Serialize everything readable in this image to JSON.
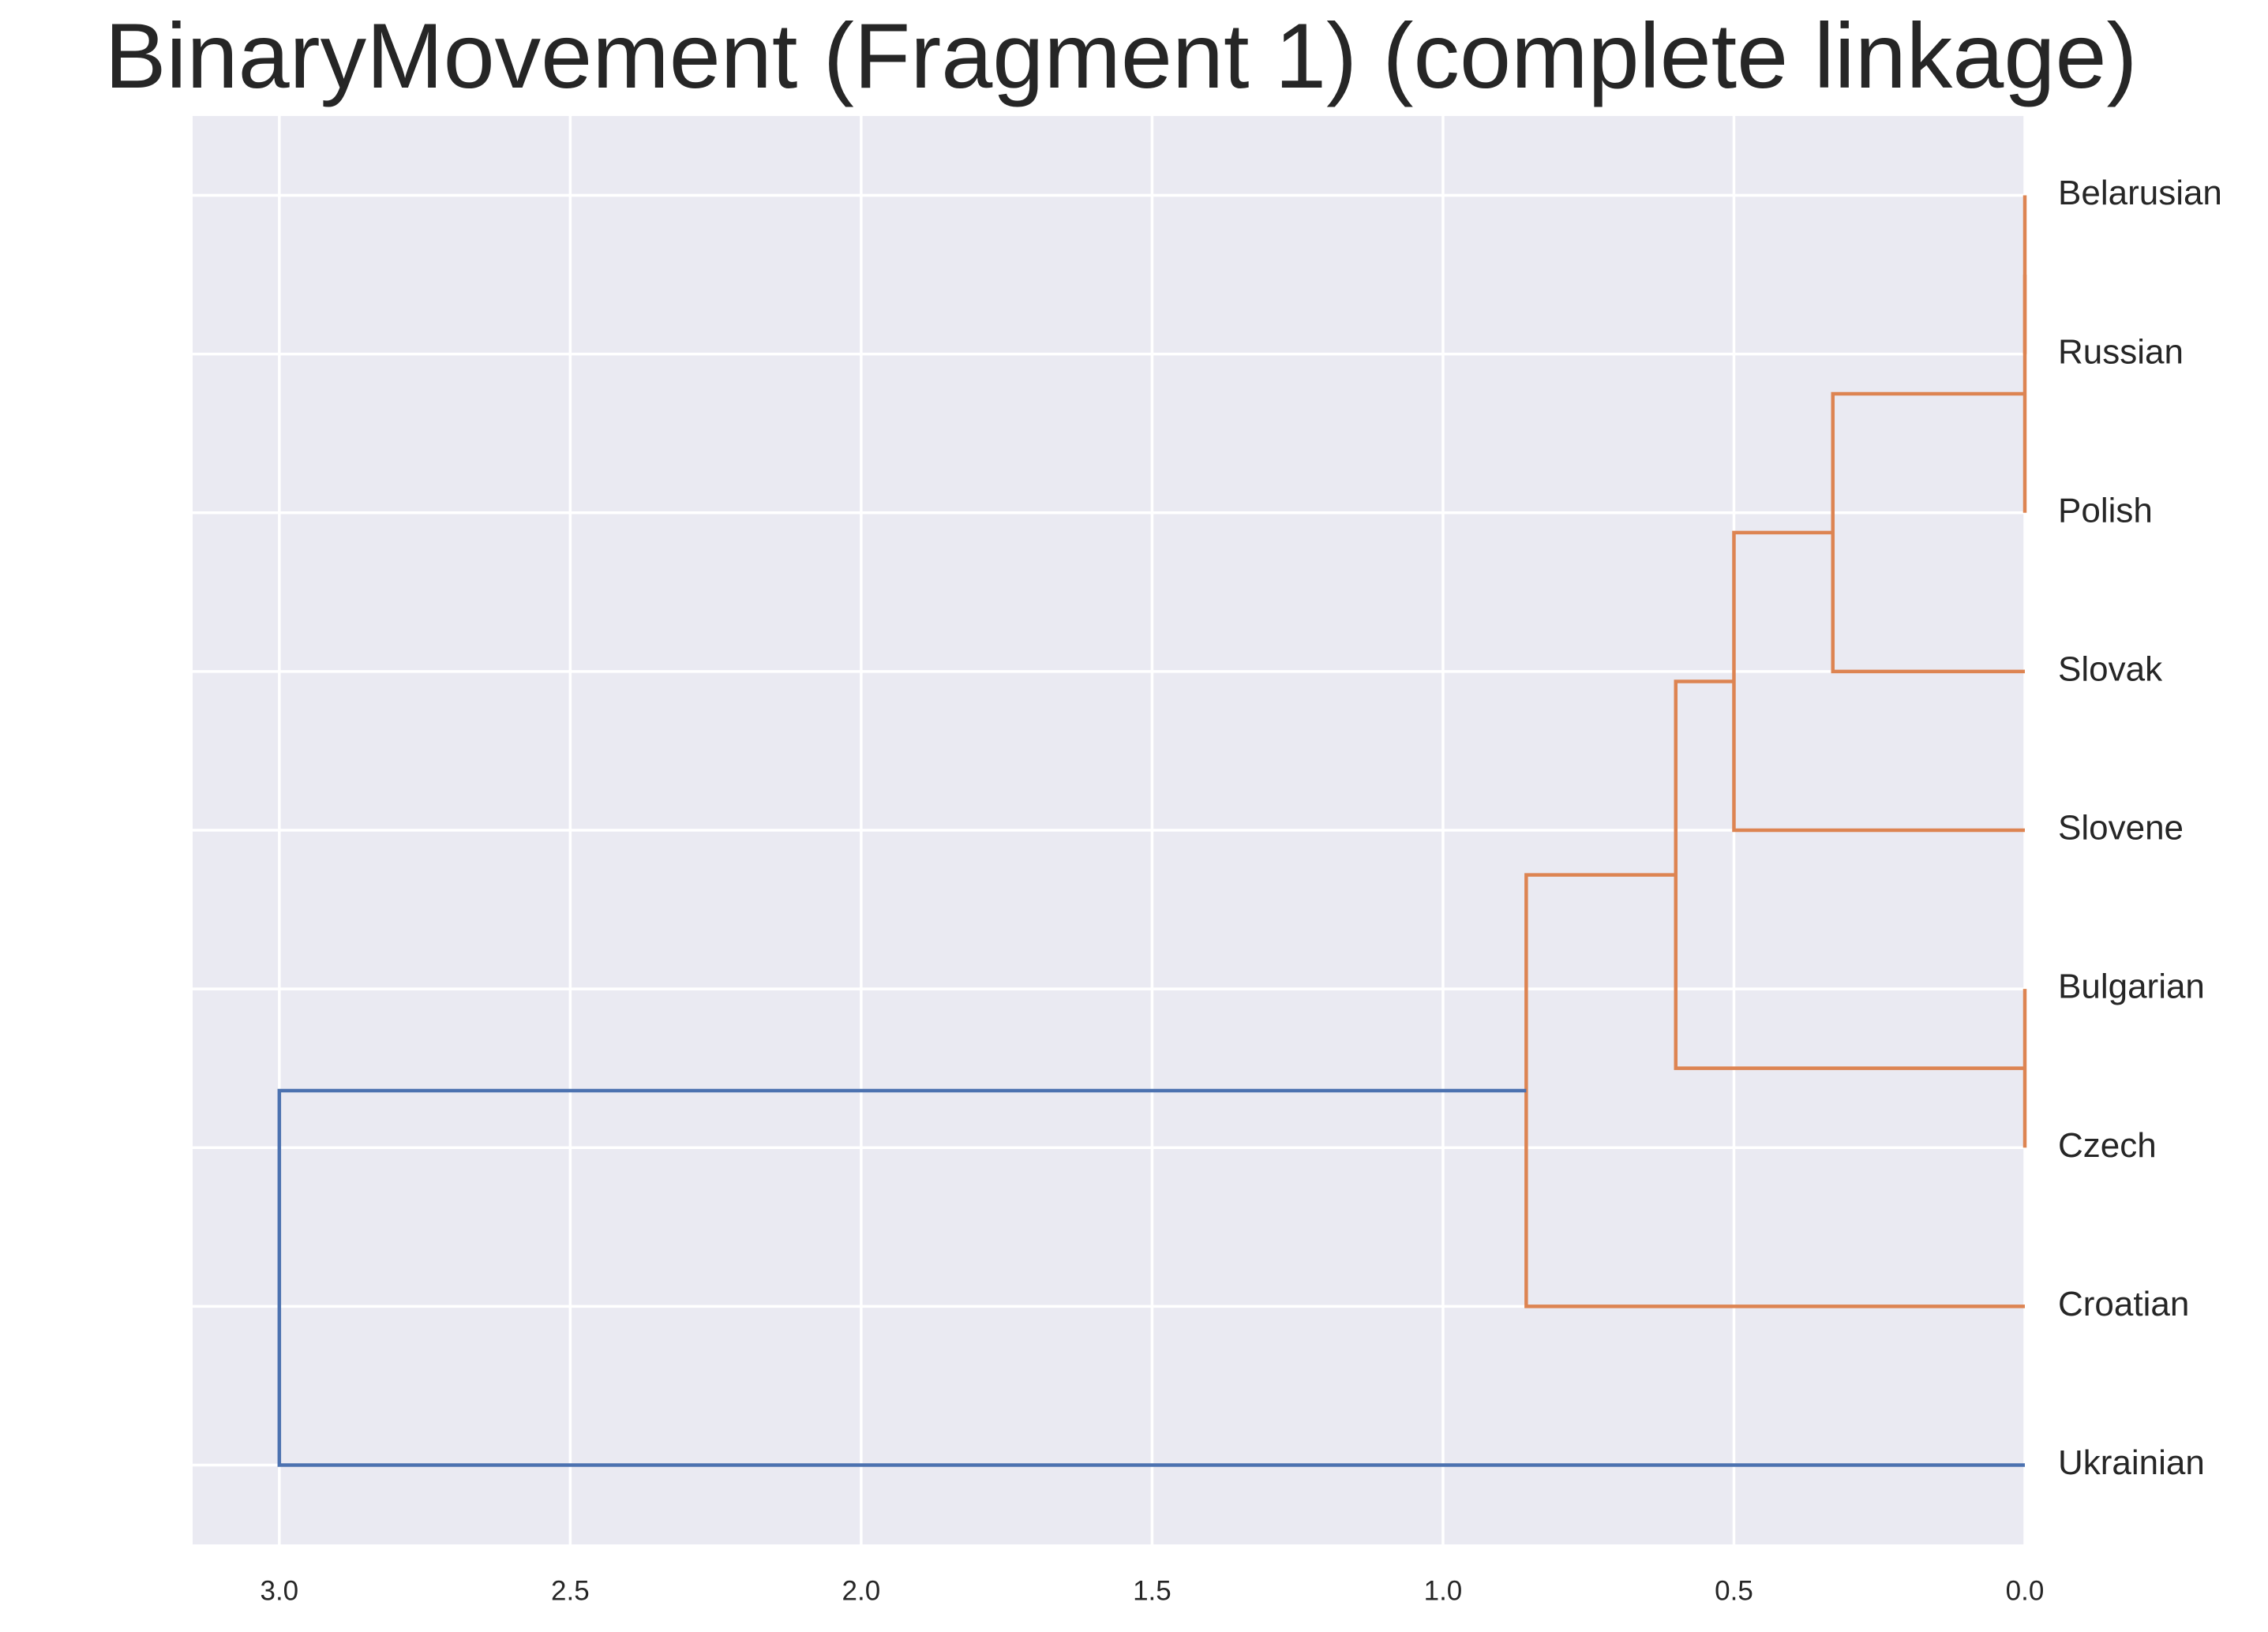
{
  "chart_data": {
    "type": "dendrogram",
    "title": "BinaryMovement (Fragment 1) (complete linkage)",
    "leaves": [
      "Belarusian",
      "Russian",
      "Polish",
      "Slovak",
      "Slovene",
      "Bulgarian",
      "Czech",
      "Croatian",
      "Ukrainian"
    ],
    "links": [
      {
        "children": [
          0,
          1
        ],
        "height": 0,
        "color": "#dd8452"
      },
      {
        "children": [
          9,
          2
        ],
        "height": 0,
        "color": "#dd8452"
      },
      {
        "children": [
          10,
          3
        ],
        "height": 0.33,
        "color": "#dd8452"
      },
      {
        "children": [
          11,
          4
        ],
        "height": 0.5,
        "color": "#dd8452"
      },
      {
        "children": [
          5,
          6
        ],
        "height": 0,
        "color": "#dd8452"
      },
      {
        "children": [
          12,
          13
        ],
        "height": 0.6,
        "color": "#dd8452"
      },
      {
        "children": [
          14,
          7
        ],
        "height": 0.857,
        "color": "#dd8452"
      },
      {
        "children": [
          15,
          8
        ],
        "height": 3.0,
        "color": "#4c72b0"
      }
    ],
    "xlim": [
      3.149,
      0
    ],
    "xticks": [
      {
        "value": 3,
        "label": "3.0"
      },
      {
        "value": 2.5,
        "label": "2.5"
      },
      {
        "value": 2,
        "label": "2.0"
      },
      {
        "value": 1.5,
        "label": "1.5"
      },
      {
        "value": 1,
        "label": "1.0"
      },
      {
        "value": 0.5,
        "label": "0.5"
      },
      {
        "value": 0,
        "label": "0.0"
      }
    ],
    "grid": true
  }
}
